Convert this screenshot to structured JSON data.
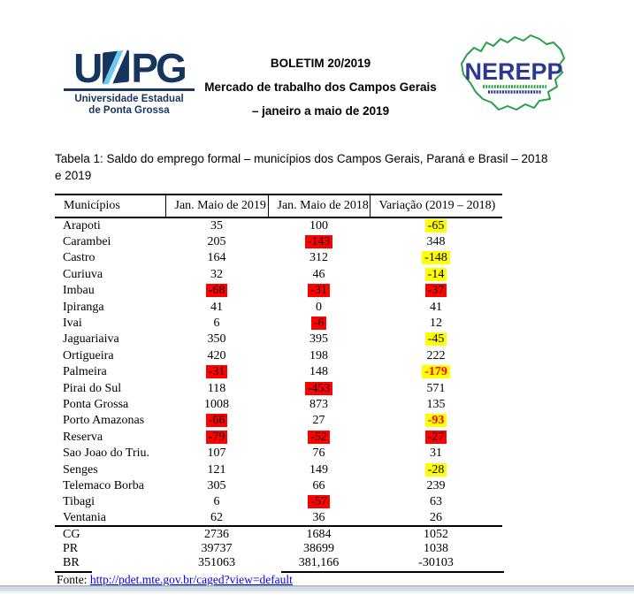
{
  "header": {
    "uepg_logo": {
      "wordmark_left": "U",
      "wordmark_right": "PG",
      "subtitle_line1": "Universidade Estadual",
      "subtitle_line2": "de Ponta Grossa"
    },
    "title_line1": "BOLETIM 20/2019",
    "title_line2": "Mercado de trabalho dos Campos Gerais",
    "title_line3": "– janeiro a maio de 2019",
    "nerepp_logo": {
      "wordmark": "NEREPP"
    }
  },
  "caption": {
    "line1": "Tabela 1: Saldo do emprego formal – municípios dos Campos Gerais, Paraná e Brasil – 2018",
    "line2": "e 2019"
  },
  "table": {
    "columns": [
      "Municípios",
      "Jan. Maio de 2019",
      "Jan. Maio de 2018",
      "Variação (2019 – 2018)"
    ],
    "rows": [
      {
        "name": "Arapoti",
        "cells": [
          {
            "t": "35"
          },
          {
            "t": "100"
          },
          {
            "t": "-65",
            "bg": "y"
          }
        ]
      },
      {
        "name": "Carambei",
        "cells": [
          {
            "t": "205"
          },
          {
            "t": "-143",
            "bg": "r"
          },
          {
            "t": "348"
          }
        ]
      },
      {
        "name": "Castro",
        "cells": [
          {
            "t": "164"
          },
          {
            "t": "312"
          },
          {
            "t": "-148",
            "bg": "y"
          }
        ]
      },
      {
        "name": "Curiuva",
        "cells": [
          {
            "t": "32"
          },
          {
            "t": "46"
          },
          {
            "t": "-14",
            "bg": "y"
          }
        ]
      },
      {
        "name": "Imbau",
        "cells": [
          {
            "t": "-68",
            "bg": "r"
          },
          {
            "t": "-31",
            "bg": "r"
          },
          {
            "t": "-37",
            "bg": "r"
          }
        ]
      },
      {
        "name": "Ipiranga",
        "cells": [
          {
            "t": "41"
          },
          {
            "t": "0"
          },
          {
            "t": "41"
          }
        ]
      },
      {
        "name": "Ivai",
        "cells": [
          {
            "t": "6"
          },
          {
            "t": "-6",
            "bg": "r"
          },
          {
            "t": "12"
          }
        ]
      },
      {
        "name": "Jaguariaiva",
        "cells": [
          {
            "t": "350"
          },
          {
            "t": "395"
          },
          {
            "t": "-45",
            "bg": "y"
          }
        ]
      },
      {
        "name": "Ortigueira",
        "cells": [
          {
            "t": "420"
          },
          {
            "t": "198"
          },
          {
            "t": "222"
          }
        ]
      },
      {
        "name": "Palmeira",
        "cells": [
          {
            "t": "-31",
            "bg": "r"
          },
          {
            "t": "148"
          },
          {
            "t": "-179",
            "bg": "y",
            "fg": "r"
          }
        ]
      },
      {
        "name": "Pirai do Sul",
        "cells": [
          {
            "t": "118"
          },
          {
            "t": "-453",
            "bg": "r"
          },
          {
            "t": "571"
          }
        ]
      },
      {
        "name": "Ponta Grossa",
        "cells": [
          {
            "t": "1008"
          },
          {
            "t": "873"
          },
          {
            "t": "135"
          }
        ]
      },
      {
        "name": "Porto Amazonas",
        "cells": [
          {
            "t": "-66",
            "bg": "r"
          },
          {
            "t": "27"
          },
          {
            "t": "-93",
            "bg": "y",
            "fg": "r"
          }
        ]
      },
      {
        "name": "Reserva",
        "cells": [
          {
            "t": "-79",
            "bg": "r"
          },
          {
            "t": "-52",
            "bg": "r"
          },
          {
            "t": "-27",
            "bg": "r"
          }
        ]
      },
      {
        "name": "Sao Joao do Triu.",
        "cells": [
          {
            "t": "107"
          },
          {
            "t": "76"
          },
          {
            "t": "31"
          }
        ]
      },
      {
        "name": "Senges",
        "cells": [
          {
            "t": "121"
          },
          {
            "t": "149"
          },
          {
            "t": "-28",
            "bg": "y"
          }
        ]
      },
      {
        "name": "Telemaco Borba",
        "cells": [
          {
            "t": "305"
          },
          {
            "t": "66"
          },
          {
            "t": "239"
          }
        ]
      },
      {
        "name": "Tibagi",
        "cells": [
          {
            "t": "6"
          },
          {
            "t": "-57",
            "bg": "r"
          },
          {
            "t": "63"
          }
        ]
      },
      {
        "name": "Ventania",
        "cells": [
          {
            "t": "62"
          },
          {
            "t": "36"
          },
          {
            "t": "26"
          }
        ]
      }
    ],
    "totals": [
      {
        "name": "CG",
        "cells": [
          {
            "t": "2736"
          },
          {
            "t": "1684"
          },
          {
            "t": "1052"
          }
        ]
      },
      {
        "name": "PR",
        "cells": [
          {
            "t": "39737"
          },
          {
            "t": "38699"
          },
          {
            "t": "1038"
          }
        ]
      },
      {
        "name": "BR",
        "cells": [
          {
            "t": "351063"
          },
          {
            "t": "381,166"
          },
          {
            "t": "-30103"
          }
        ]
      }
    ]
  },
  "footer": {
    "source_label": "Fonte:",
    "source_link": "http://pdet.mte.gov.br/caged?view=default"
  },
  "colors": {
    "highlight_red": "#ff0000",
    "highlight_yellow": "#ffff00",
    "negative_emphasis_text": "#ff0000",
    "link_blue": "#0000ee",
    "uepg_navy": "#16355e",
    "uepg_lightblue": "#6ec9ef",
    "nerepp_green": "#27a048",
    "nerepp_blue": "#2b3990"
  }
}
